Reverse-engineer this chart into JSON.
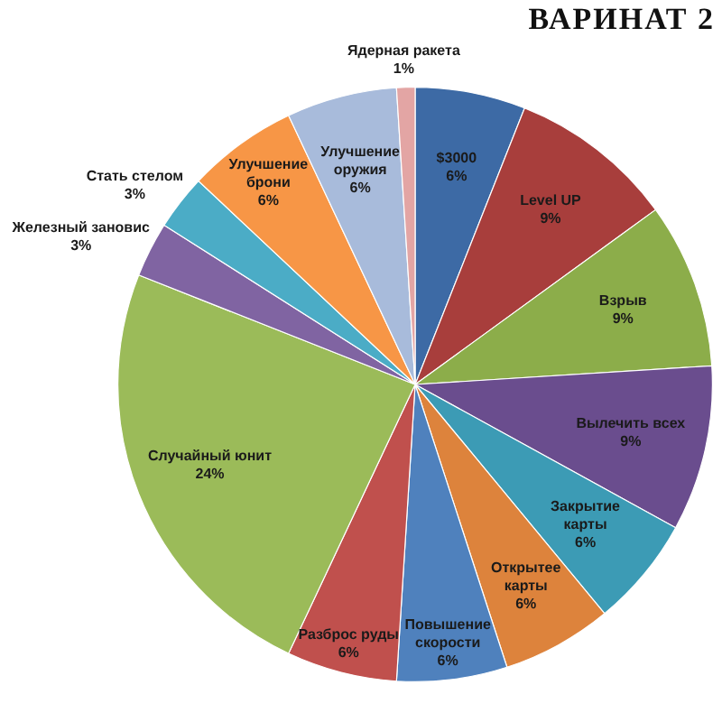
{
  "chart_data": {
    "type": "pie",
    "title": "ВАРИНАТ 2",
    "categories": [
      "$3000",
      "Level UP",
      "Взрыв",
      "Вылечить всех",
      "Закрытие карты",
      "Открытее карты",
      "Повышение скорости",
      "Разброс руды",
      "Случайный юнит",
      "Железный зановис",
      "Стать стелом",
      "Улучшение брони",
      "Улучшение оружия",
      "Ядерная ракета"
    ],
    "values": [
      6,
      9,
      9,
      9,
      6,
      6,
      6,
      6,
      24,
      3,
      3,
      6,
      6,
      1
    ],
    "value_labels": [
      "6%",
      "9%",
      "9%",
      "9%",
      "6%",
      "6%",
      "6%",
      "6%",
      "24%",
      "3%",
      "3%",
      "6%",
      "6%",
      "1%"
    ],
    "colors": [
      "#3d6aa5",
      "#a83e3c",
      "#8cad4a",
      "#6a4d8e",
      "#3c9bb5",
      "#dd833c",
      "#4f81bd",
      "#c0504d",
      "#9bbb59",
      "#8064a2",
      "#4bacc6",
      "#f79646",
      "#a8bbdb",
      "#e3a5a4"
    ]
  }
}
